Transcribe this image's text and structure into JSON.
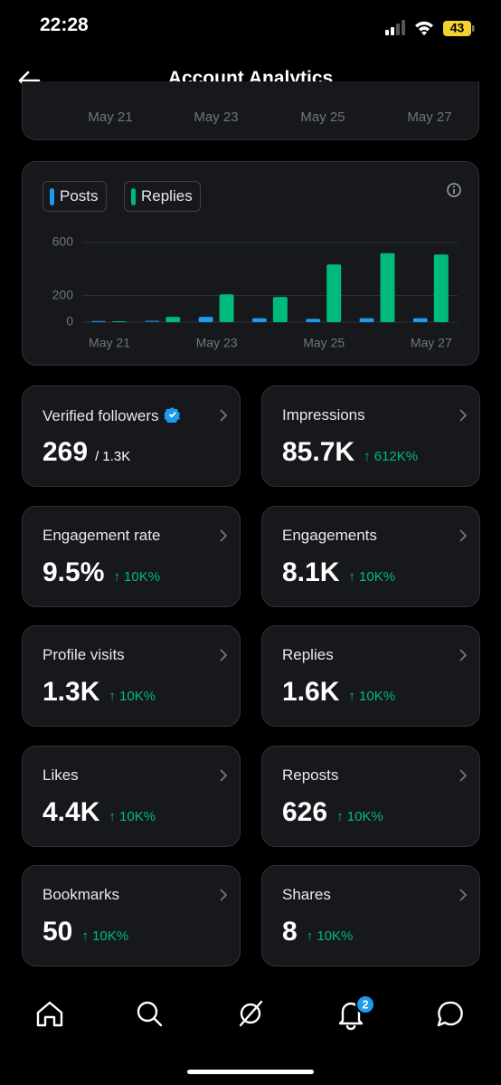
{
  "status": {
    "time": "22:28",
    "battery": "43"
  },
  "header": {
    "title": "Account Analytics"
  },
  "top_card": {
    "x_labels": [
      "May 21",
      "May 23",
      "May 25",
      "May 27"
    ]
  },
  "chart_data": {
    "type": "bar",
    "categories": [
      "May 21",
      null,
      "May 23",
      null,
      "May 25",
      null,
      "May 27"
    ],
    "series": [
      {
        "name": "Posts",
        "color": "#1d9bf0",
        "values": [
          2,
          3,
          40,
          30,
          25,
          30,
          30
        ]
      },
      {
        "name": "Replies",
        "color": "#00ba7c",
        "values": [
          0,
          40,
          210,
          190,
          435,
          520,
          510
        ]
      }
    ],
    "ylim": [
      0,
      600
    ],
    "yticks": [
      0,
      200,
      600
    ],
    "grid": true
  },
  "metrics": [
    {
      "label": "Verified followers",
      "value": "269",
      "total": "/ 1.3K"
    },
    {
      "label": "Impressions",
      "value": "85.7K",
      "change": "↑ 612K%"
    },
    {
      "label": "Engagement rate",
      "value": "9.5%",
      "change": "↑ 10K%"
    },
    {
      "label": "Engagements",
      "value": "8.1K",
      "change": "↑ 10K%"
    },
    {
      "label": "Profile visits",
      "value": "1.3K",
      "change": "↑ 10K%"
    },
    {
      "label": "Replies",
      "value": "1.6K",
      "change": "↑ 10K%"
    },
    {
      "label": "Likes",
      "value": "4.4K",
      "change": "↑ 10K%"
    },
    {
      "label": "Reposts",
      "value": "626",
      "change": "↑ 10K%"
    },
    {
      "label": "Bookmarks",
      "value": "50",
      "change": "↑ 10K%"
    },
    {
      "label": "Shares",
      "value": "8",
      "change": "↑ 10K%"
    }
  ],
  "nav": {
    "badge": "2"
  }
}
